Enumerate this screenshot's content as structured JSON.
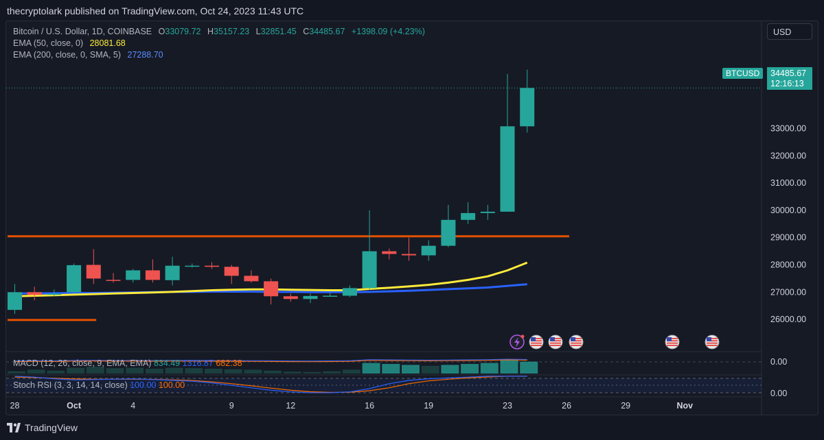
{
  "header": {
    "published_text": "thecryptolark published on TradingView.com, Oct 24, 2023 11:43 UTC"
  },
  "legend": {
    "symbol": "Bitcoin / U.S. Dollar, 1D, COINBASE",
    "o_label": "O",
    "o_value": "33079.72",
    "h_label": "H",
    "h_value": "35157.23",
    "l_label": "L",
    "l_value": "32851.45",
    "c_label": "C",
    "c_value": "34485.67",
    "change": "+1398.09 (+4.23%)",
    "ema50_label": "EMA (50, close, 0)",
    "ema50_value": "28081.68",
    "ema200_label": "EMA (200, close, 0, SMA, 5)",
    "ema200_value": "27288.70"
  },
  "price_scale": {
    "currency": "USD",
    "symbol_tag": "BTCUSD",
    "last_price": "34485.67",
    "countdown": "12:16:13"
  },
  "indicators": {
    "macd_label": "MACD (12, 26, close, 9, EMA, EMA)",
    "macd_values": [
      "834.49",
      "1316.87",
      "682.38"
    ],
    "stoch_label": "Stoch RSI (3, 3, 14, 14, close)",
    "stoch_values": [
      "100.00",
      "100.00"
    ]
  },
  "footer": {
    "brand": "TradingView"
  },
  "colors": {
    "up": "#26a69a",
    "down": "#ef5350",
    "ema50": "#ffeb3b",
    "ema200": "#2962ff",
    "hline": "#e65100",
    "bg": "#161a25"
  },
  "chart_data": {
    "type": "candlestick",
    "y_range": [
      25500,
      35600
    ],
    "y_ticks": [
      26000,
      27000,
      28000,
      29000,
      30000,
      31000,
      32000,
      33000,
      34000,
      35000
    ],
    "x_ticks": [
      {
        "i": 0,
        "label": "28"
      },
      {
        "i": 3,
        "label": "Oct"
      },
      {
        "i": 6,
        "label": "4"
      },
      {
        "i": 11,
        "label": "9"
      },
      {
        "i": 14,
        "label": "12"
      },
      {
        "i": 18,
        "label": "16"
      },
      {
        "i": 21,
        "label": "19"
      },
      {
        "i": 25,
        "label": "23"
      },
      {
        "i": 28,
        "label": "26"
      },
      {
        "i": 31,
        "label": "29"
      },
      {
        "i": 34,
        "label": "Nov"
      }
    ],
    "candles": [
      {
        "o": 26350,
        "h": 27300,
        "l": 26200,
        "c": 27000
      },
      {
        "o": 27000,
        "h": 27200,
        "l": 26700,
        "c": 26900
      },
      {
        "o": 26900,
        "h": 27100,
        "l": 26850,
        "c": 26950
      },
      {
        "o": 27000,
        "h": 28050,
        "l": 26950,
        "c": 27990
      },
      {
        "o": 28000,
        "h": 28580,
        "l": 27300,
        "c": 27500
      },
      {
        "o": 27450,
        "h": 27700,
        "l": 27350,
        "c": 27430
      },
      {
        "o": 27450,
        "h": 27850,
        "l": 27350,
        "c": 27800
      },
      {
        "o": 27800,
        "h": 28200,
        "l": 27350,
        "c": 27450
      },
      {
        "o": 27440,
        "h": 28300,
        "l": 27250,
        "c": 27970
      },
      {
        "o": 27950,
        "h": 28050,
        "l": 27900,
        "c": 27970
      },
      {
        "o": 27970,
        "h": 28100,
        "l": 27850,
        "c": 27930
      },
      {
        "o": 27930,
        "h": 28000,
        "l": 27300,
        "c": 27600
      },
      {
        "o": 27600,
        "h": 27800,
        "l": 27350,
        "c": 27400
      },
      {
        "o": 27400,
        "h": 27500,
        "l": 26550,
        "c": 26850
      },
      {
        "o": 26850,
        "h": 26950,
        "l": 26650,
        "c": 26750
      },
      {
        "o": 26750,
        "h": 26950,
        "l": 26600,
        "c": 26860
      },
      {
        "o": 26860,
        "h": 27000,
        "l": 26830,
        "c": 26870
      },
      {
        "o": 26870,
        "h": 27250,
        "l": 26820,
        "c": 27150
      },
      {
        "o": 27150,
        "h": 30000,
        "l": 27100,
        "c": 28500
      },
      {
        "o": 28500,
        "h": 28600,
        "l": 28200,
        "c": 28400
      },
      {
        "o": 28400,
        "h": 29000,
        "l": 28150,
        "c": 28350
      },
      {
        "o": 28350,
        "h": 28900,
        "l": 28150,
        "c": 28700
      },
      {
        "o": 28700,
        "h": 30200,
        "l": 28650,
        "c": 29650
      },
      {
        "o": 29650,
        "h": 30300,
        "l": 29500,
        "c": 29900
      },
      {
        "o": 29900,
        "h": 30200,
        "l": 29650,
        "c": 29950
      },
      {
        "o": 29950,
        "h": 35000,
        "l": 29950,
        "c": 33080
      },
      {
        "o": 33080,
        "h": 35157.23,
        "l": 32851.45,
        "c": 34485.67
      }
    ],
    "ema50": [
      26850,
      26870,
      26890,
      26910,
      26930,
      26950,
      26970,
      26990,
      27010,
      27040,
      27070,
      27090,
      27100,
      27100,
      27090,
      27080,
      27070,
      27070,
      27120,
      27160,
      27210,
      27270,
      27350,
      27450,
      27580,
      27800,
      28081.68
    ],
    "ema200": [
      26950,
      26960,
      26960,
      26970,
      26970,
      26980,
      26990,
      27000,
      27010,
      27010,
      27020,
      27020,
      27020,
      27010,
      27010,
      27000,
      27000,
      27000,
      27010,
      27030,
      27050,
      27080,
      27110,
      27140,
      27170,
      27230,
      27288.7
    ],
    "hlines": [
      {
        "y": 29050,
        "from_i": 0,
        "to_i": 28.5
      },
      {
        "y": 25980,
        "from_i": 0,
        "to_i": 4.5
      }
    ],
    "macd_hist": [
      0.12,
      0.2,
      0.15,
      0.3,
      0.35,
      0.28,
      0.3,
      0.25,
      0.3,
      0.28,
      0.25,
      0.22,
      0.2,
      0.15,
      0.1,
      0.08,
      0.12,
      0.2,
      0.55,
      0.5,
      0.45,
      0.4,
      0.45,
      0.5,
      0.55,
      0.75,
      0.62
    ],
    "stoch_k": [
      100,
      95,
      85,
      78,
      80,
      82,
      84,
      80,
      75,
      70,
      60,
      45,
      30,
      15,
      5,
      0,
      0,
      5,
      25,
      55,
      75,
      85,
      90,
      95,
      100,
      100,
      100
    ],
    "stoch_d": [
      95,
      92,
      88,
      84,
      82,
      82,
      82,
      81,
      78,
      74,
      66,
      55,
      42,
      28,
      15,
      6,
      2,
      3,
      12,
      30,
      55,
      72,
      82,
      90,
      96,
      100,
      100
    ]
  }
}
